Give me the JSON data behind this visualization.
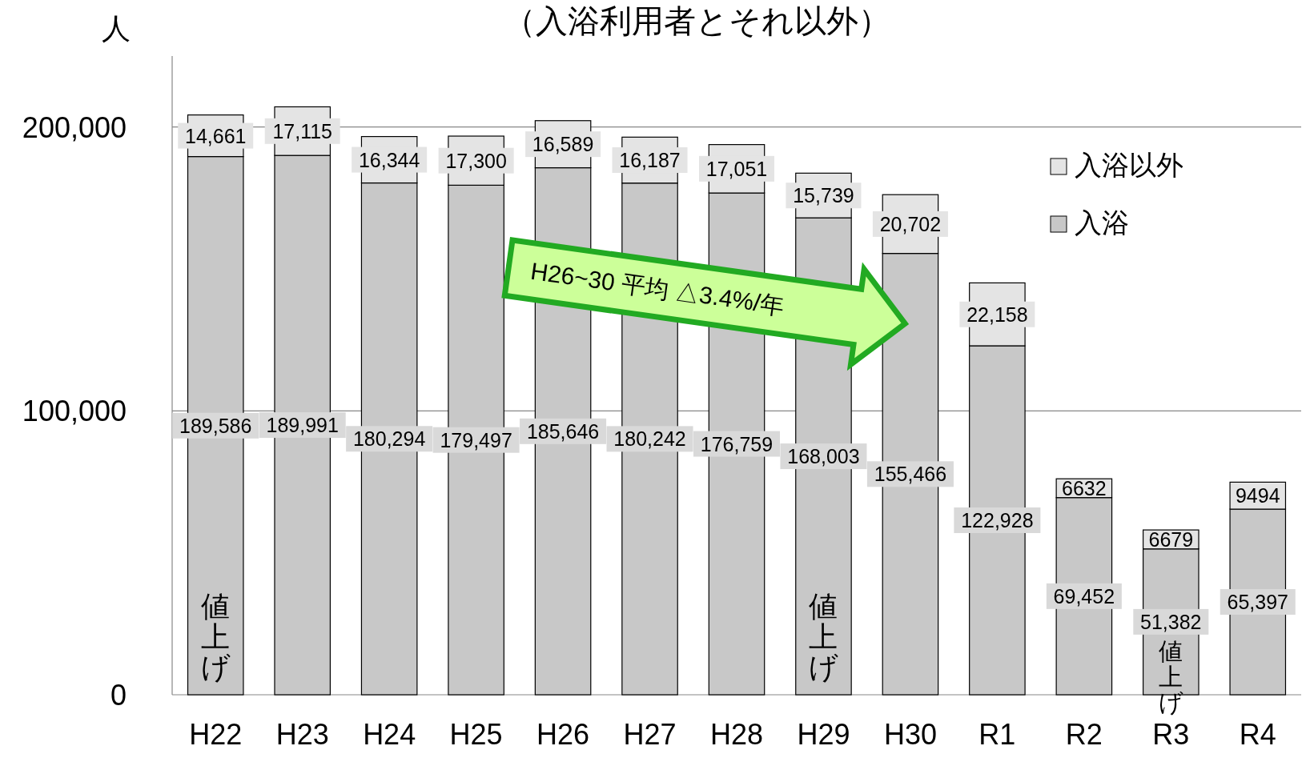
{
  "chart_data": {
    "type": "bar",
    "stacked": true,
    "title": "（入浴利用者とそれ以外）",
    "ylabel": "人",
    "categories": [
      "H22",
      "H23",
      "H24",
      "H25",
      "H26",
      "H27",
      "H28",
      "H29",
      "H30",
      "R1",
      "R2",
      "R3",
      "R4"
    ],
    "series": [
      {
        "name": "入浴",
        "color": "#c8c8c8",
        "values": [
          189586,
          189991,
          180294,
          179497,
          185646,
          180242,
          176759,
          168003,
          155466,
          122928,
          69452,
          51382,
          65397
        ],
        "value_labels": [
          "189,586",
          "189,991",
          "180,294",
          "179,497",
          "185,646",
          "180,242",
          "176,759",
          "168,003",
          "155,466",
          "122,928",
          "69,452",
          "51,382",
          "65,397"
        ]
      },
      {
        "name": "入浴以外",
        "color": "#e4e4e4",
        "values": [
          14661,
          17115,
          16344,
          17300,
          16589,
          16187,
          17051,
          15739,
          20702,
          22158,
          6632,
          6679,
          9494
        ],
        "value_labels": [
          "14,661",
          "17,115",
          "16,344",
          "17,300",
          "16,589",
          "16,187",
          "17,051",
          "15,739",
          "20,702",
          "22,158",
          "6632",
          "6679",
          "9494"
        ]
      }
    ],
    "ylim": [
      0,
      225000
    ],
    "yticks": [
      {
        "value": 0,
        "label": "0"
      },
      {
        "value": 100000,
        "label": "100,000"
      },
      {
        "value": 200000,
        "label": "200,000"
      }
    ],
    "grid": "y",
    "legend": "right",
    "annotations": [
      "値上げ",
      "値上げ",
      "値上げ",
      "H26~30  平均 △3.4%/年"
    ]
  }
}
